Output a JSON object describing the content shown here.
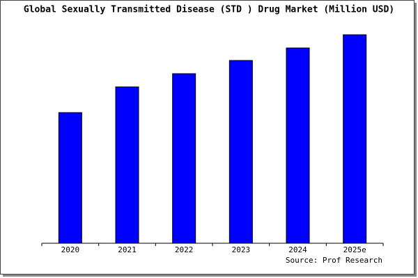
{
  "chart_data": {
    "type": "bar",
    "title": "Global Sexually Transmitted Disease (STD ) Drug Market (Million USD)",
    "categories": [
      "2020",
      "2021",
      "2022",
      "2023",
      "2024",
      "2025e"
    ],
    "values": [
      188,
      225,
      244,
      263,
      281,
      300
    ],
    "color": "#0000ff",
    "ylim": [
      0,
      300
    ],
    "source": "Source: Prof Research"
  }
}
